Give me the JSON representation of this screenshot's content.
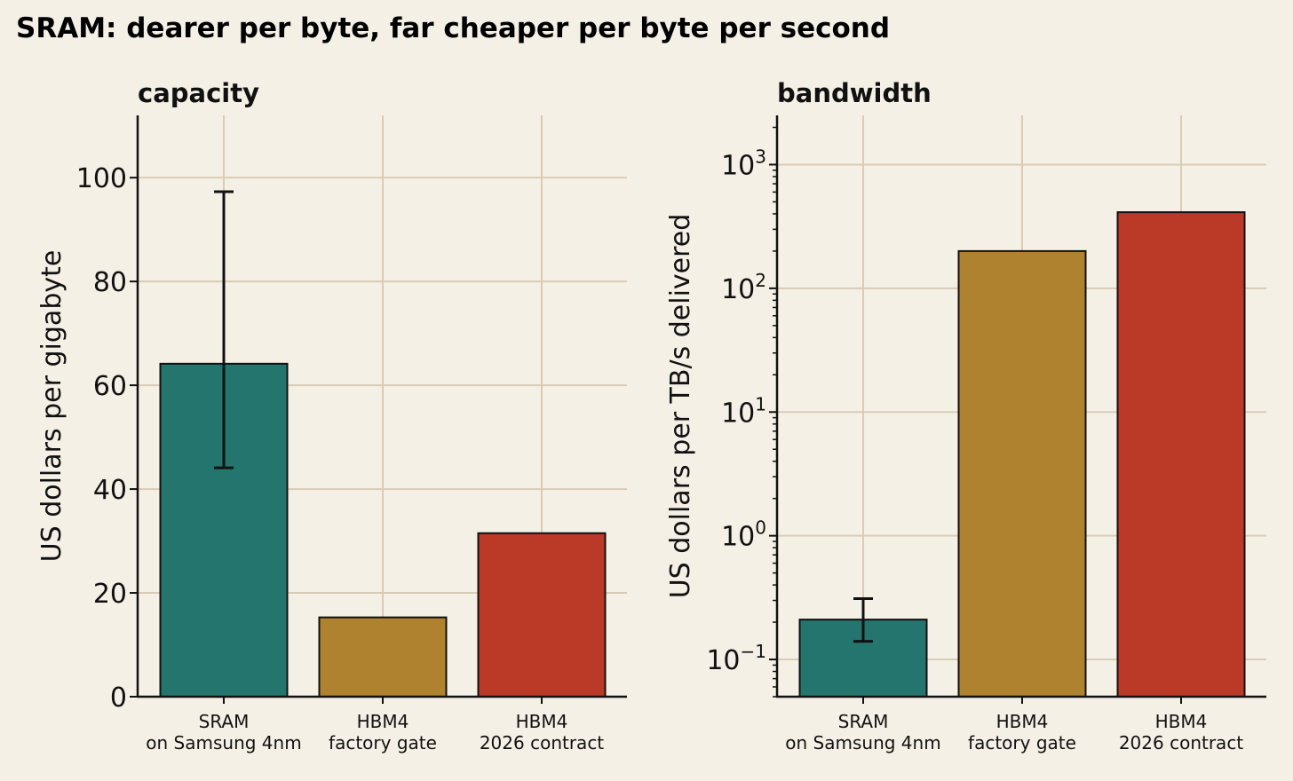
{
  "title": "SRAM: dearer per byte, far cheaper per byte per second",
  "chart_data": [
    {
      "type": "bar",
      "title": "capacity",
      "xlabel": "",
      "ylabel": "US dollars per gigabyte",
      "yscale": "linear",
      "ylim": [
        0,
        112
      ],
      "yticks": [
        0,
        20,
        40,
        60,
        80,
        100
      ],
      "grid": true,
      "categories": [
        [
          "SRAM",
          "on Samsung 4nm"
        ],
        [
          "HBM4",
          "factory gate"
        ],
        [
          "HBM4",
          "2026 contract"
        ]
      ],
      "values": [
        64.15,
        15.28,
        31.5
      ],
      "value_labels": [
        "$64.15",
        "$15.28",
        "$31.50"
      ],
      "error_bars": [
        [
          44.1,
          97.3
        ],
        null,
        null
      ],
      "colors": [
        "#23756d",
        "#ae822e",
        "#bb3a27"
      ]
    },
    {
      "type": "bar",
      "title": "bandwidth",
      "xlabel": "",
      "ylabel": "US dollars per TB/s delivered",
      "yscale": "log",
      "ylim": [
        0.05,
        2500
      ],
      "yticks": [
        {
          "base": "10",
          "exp": "−1",
          "value": 0.1
        },
        {
          "base": "10",
          "exp": "0",
          "value": 1
        },
        {
          "base": "10",
          "exp": "1",
          "value": 10
        },
        {
          "base": "10",
          "exp": "2",
          "value": 100
        },
        {
          "base": "10",
          "exp": "3",
          "value": 1000
        }
      ],
      "grid": true,
      "categories": [
        [
          "SRAM",
          "on Samsung 4nm"
        ],
        [
          "HBM4",
          "factory gate"
        ],
        [
          "HBM4",
          "2026 contract"
        ]
      ],
      "values": [
        0.21,
        200.03,
        412.36
      ],
      "value_labels": [
        "$0.21",
        "$200.03",
        "$412.36"
      ],
      "error_bars": [
        [
          0.14,
          0.31
        ],
        null,
        null
      ],
      "colors": [
        "#23756d",
        "#ae822e",
        "#bb3a27"
      ]
    }
  ]
}
